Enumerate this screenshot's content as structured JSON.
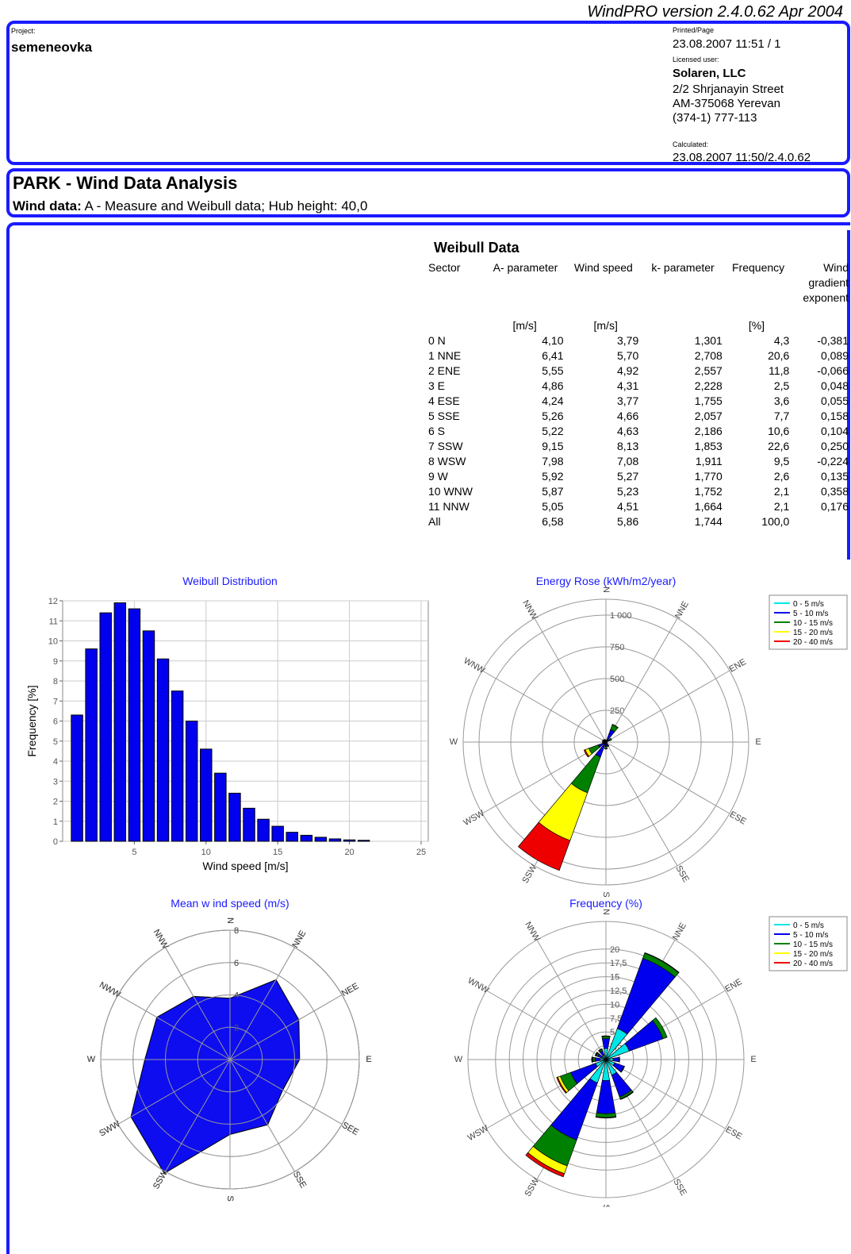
{
  "header": {
    "version": "WindPRO version 2.4.0.62   Apr 2004",
    "project_label": "Project:",
    "project": "semeneovka",
    "printed_label": "Printed/Page",
    "printed": "23.08.2007 11:51 / 1",
    "licensed_label": "Licensed user:",
    "company": "Solaren, LLC",
    "address": [
      "2/2 Shrjanayin Street",
      "AM-375068 Yerevan",
      "(374-1) 777-113"
    ],
    "calculated_label": "Calculated:",
    "calculated": "23.08.2007 11:50/2.4.0.62"
  },
  "section": {
    "title": "PARK - Wind Data Analysis",
    "wind_label": "Wind data:",
    "wind_text": "A - Measure and Weibull data; Hub height: 40,0"
  },
  "table": {
    "title": "Weibull Data",
    "columns": [
      "Sector",
      "A- parameter",
      "Wind speed",
      "k- parameter",
      "Frequency",
      "Wind gradient exponent"
    ],
    "units": [
      null,
      "[m/s]",
      "[m/s]",
      null,
      "[%]",
      null
    ],
    "rows": [
      [
        "0 N",
        "4,10",
        "3,79",
        "1,301",
        "4,3",
        "-0,381"
      ],
      [
        "1 NNE",
        "6,41",
        "5,70",
        "2,708",
        "20,6",
        "0,089"
      ],
      [
        "2 ENE",
        "5,55",
        "4,92",
        "2,557",
        "11,8",
        "-0,066"
      ],
      [
        "3 E",
        "4,86",
        "4,31",
        "2,228",
        "2,5",
        "0,048"
      ],
      [
        "4 ESE",
        "4,24",
        "3,77",
        "1,755",
        "3,6",
        "0,055"
      ],
      [
        "5 SSE",
        "5,26",
        "4,66",
        "2,057",
        "7,7",
        "0,158"
      ],
      [
        "6 S",
        "5,22",
        "4,63",
        "2,186",
        "10,6",
        "0,104"
      ],
      [
        "7 SSW",
        "9,15",
        "8,13",
        "1,853",
        "22,6",
        "0,250"
      ],
      [
        "8 WSW",
        "7,98",
        "7,08",
        "1,911",
        "9,5",
        "-0,224"
      ],
      [
        "9 W",
        "5,92",
        "5,27",
        "1,770",
        "2,6",
        "0,135"
      ],
      [
        "10 WNW",
        "5,87",
        "5,23",
        "1,752",
        "2,1",
        "0,358"
      ],
      [
        "11 NNW",
        "5,05",
        "4,51",
        "1,664",
        "2,1",
        "0,176"
      ],
      [
        "All",
        "6,58",
        "5,86",
        "1,744",
        "100,0"
      ]
    ]
  },
  "chart_data": [
    {
      "type": "bar",
      "title": "Weibull Distribution",
      "x_label": "Wind speed [m/s]",
      "y_label": "Frequency [%]",
      "color": "#0000ee",
      "grid": true,
      "x": [
        1,
        2,
        3,
        4,
        5,
        6,
        7,
        8,
        9,
        10,
        11,
        12,
        13,
        14,
        15,
        16,
        17,
        18,
        19,
        20,
        21
      ],
      "values": [
        6.3,
        9.6,
        11.4,
        11.9,
        11.6,
        10.5,
        9.1,
        7.5,
        6.0,
        4.6,
        3.4,
        2.4,
        1.65,
        1.1,
        0.75,
        0.45,
        0.3,
        0.2,
        0.12,
        0.07,
        0.05
      ],
      "xlim": [
        0,
        25.5
      ],
      "xticks": [
        5,
        10,
        15,
        20,
        25
      ],
      "ylim": [
        0,
        12
      ],
      "yticks": [
        0,
        1,
        2,
        3,
        4,
        5,
        6,
        7,
        8,
        9,
        10,
        11,
        12
      ]
    },
    {
      "type": "polar_stacked_bar",
      "title": "Energy Rose (kWh/m2/year)",
      "categories": [
        "N",
        "NNE",
        "ENE",
        "E",
        "ESE",
        "SSE",
        "S",
        "SSW",
        "WSW",
        "W",
        "WNW",
        "NNW"
      ],
      "rlim": [
        0,
        1125
      ],
      "rticks": [
        250,
        500,
        750,
        {
          "value": 1000,
          "label": "1 000"
        }
      ],
      "series": [
        {
          "name": "0 - 5 m/s",
          "color": "#00e5e5",
          "values": [
            2,
            5,
            3,
            1,
            1,
            2,
            2,
            5,
            4,
            1,
            1,
            1
          ]
        },
        {
          "name": "5 - 10 m/s",
          "color": "#0000ee",
          "values": [
            10,
            100,
            30,
            5,
            8,
            25,
            35,
            120,
            60,
            10,
            10,
            10
          ]
        },
        {
          "name": "10 - 15 m/s",
          "color": "#008000",
          "values": [
            5,
            40,
            15,
            2,
            2,
            10,
            15,
            300,
            80,
            10,
            10,
            8
          ]
        },
        {
          "name": "15 - 20 m/s",
          "color": "#ffff00",
          "values": [
            0,
            5,
            0,
            0,
            0,
            2,
            2,
            400,
            30,
            5,
            5,
            3
          ]
        },
        {
          "name": "20 - 40 m/s",
          "color": "#ee0000",
          "values": [
            0,
            0,
            0,
            0,
            0,
            0,
            1,
            250,
            10,
            2,
            3,
            1
          ]
        }
      ]
    },
    {
      "type": "polar_area",
      "title": "Mean w ind speed (m/s)",
      "categories": [
        "N",
        "NNE",
        "NEE",
        "E",
        "SEE",
        "SSE",
        "S",
        "SSW",
        "SWW",
        "W",
        "NWW",
        "NNW"
      ],
      "color": "#0000ee",
      "rlim": [
        0,
        8
      ],
      "rticks": [
        2,
        4,
        6,
        8
      ],
      "values": [
        3.79,
        5.7,
        4.92,
        4.31,
        3.77,
        4.66,
        4.63,
        8.13,
        7.08,
        5.27,
        5.23,
        4.51
      ]
    },
    {
      "type": "polar_stacked_bar",
      "title": "Frequency (%)",
      "categories": [
        "N",
        "NNE",
        "ENE",
        "E",
        "ESE",
        "SSE",
        "S",
        "SSW",
        "WSW",
        "W",
        "WNW",
        "NNW"
      ],
      "rlim": [
        0,
        25
      ],
      "rticks": [
        {
          "value": 2.5,
          "label": "2,5"
        },
        5,
        {
          "value": 7.5,
          "label": "7,5"
        },
        10,
        {
          "value": 12.5,
          "label": "12,5"
        },
        15,
        {
          "value": 17.5,
          "label": "17,5"
        },
        20
      ],
      "series": [
        {
          "name": "0 - 5 m/s",
          "color": "#00e5e5",
          "values": [
            2.0,
            6.0,
            4.5,
            1.3,
            1.7,
            3.0,
            3.8,
            4.5,
            2.0,
            1.0,
            0.8,
            0.9
          ]
        },
        {
          "name": "5 - 10 m/s",
          "color": "#0000ee",
          "values": [
            1.8,
            13.5,
            6.5,
            1.1,
            1.8,
            4.2,
            6.0,
            11.0,
            4.8,
            1.0,
            0.8,
            0.8
          ]
        },
        {
          "name": "10 - 15 m/s",
          "color": "#008000",
          "values": [
            0.4,
            1.0,
            0.8,
            0.1,
            0.1,
            0.4,
            0.7,
            5.0,
            2.0,
            0.4,
            0.3,
            0.3
          ]
        },
        {
          "name": "15 - 20 m/s",
          "color": "#ffff00",
          "values": [
            0.1,
            0.1,
            0,
            0,
            0,
            0.1,
            0.1,
            1.5,
            0.5,
            0.1,
            0.1,
            0.1
          ]
        },
        {
          "name": "20 - 40 m/s",
          "color": "#ee0000",
          "values": [
            0,
            0,
            0,
            0,
            0,
            0,
            0,
            0.6,
            0.2,
            0.1,
            0.1,
            0
          ]
        }
      ]
    }
  ]
}
